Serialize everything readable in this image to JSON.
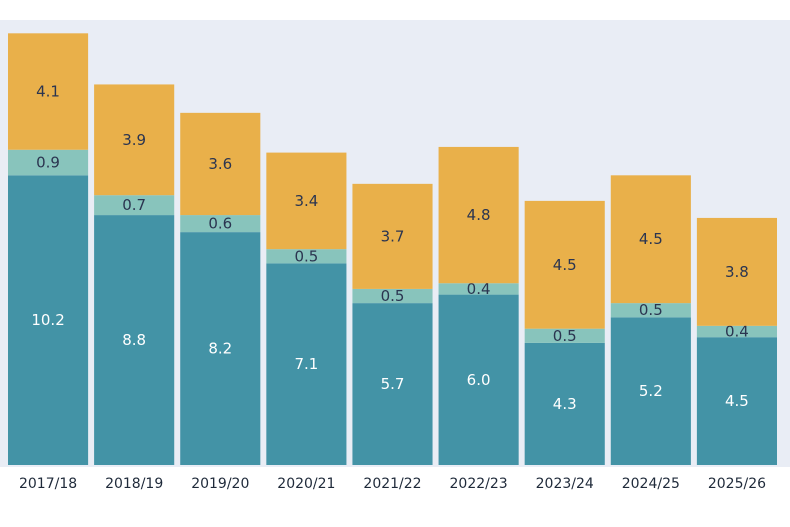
{
  "chart_data": {
    "type": "bar",
    "stacked": true,
    "categories": [
      "2017/18",
      "2018/19",
      "2019/20",
      "2020/21",
      "2021/22",
      "2022/23",
      "2023/24",
      "2024/25",
      "2025/26"
    ],
    "series": [
      {
        "color": "#4393a6",
        "label_color": "#ffffff",
        "values": [
          10.2,
          8.8,
          8.2,
          7.1,
          5.7,
          6.0,
          4.3,
          5.2,
          4.5
        ],
        "labels": [
          "10.2",
          "8.8",
          "8.2",
          "7.1",
          "5.7",
          "6.0",
          "4.3",
          "5.2",
          "4.5"
        ]
      },
      {
        "color": "#88c4bc",
        "label_color": "#2b3550",
        "values": [
          0.9,
          0.7,
          0.6,
          0.5,
          0.5,
          0.4,
          0.5,
          0.5,
          0.4
        ],
        "labels": [
          "0.9",
          "0.7",
          "0.6",
          "0.5",
          "0.5",
          "0.4",
          "0.5",
          "0.5",
          "0.4"
        ]
      },
      {
        "color": "#e9b04a",
        "label_color": "#2b3550",
        "values": [
          4.1,
          3.9,
          3.6,
          3.4,
          3.7,
          4.8,
          4.5,
          4.5,
          3.8
        ],
        "labels": [
          "4.1",
          "3.9",
          "3.6",
          "3.4",
          "3.7",
          "4.8",
          "4.5",
          "4.5",
          "3.8"
        ]
      }
    ],
    "background": "#e9edf5",
    "grid": false,
    "legend": "none",
    "title": "",
    "xlabel": "",
    "ylabel": ""
  }
}
